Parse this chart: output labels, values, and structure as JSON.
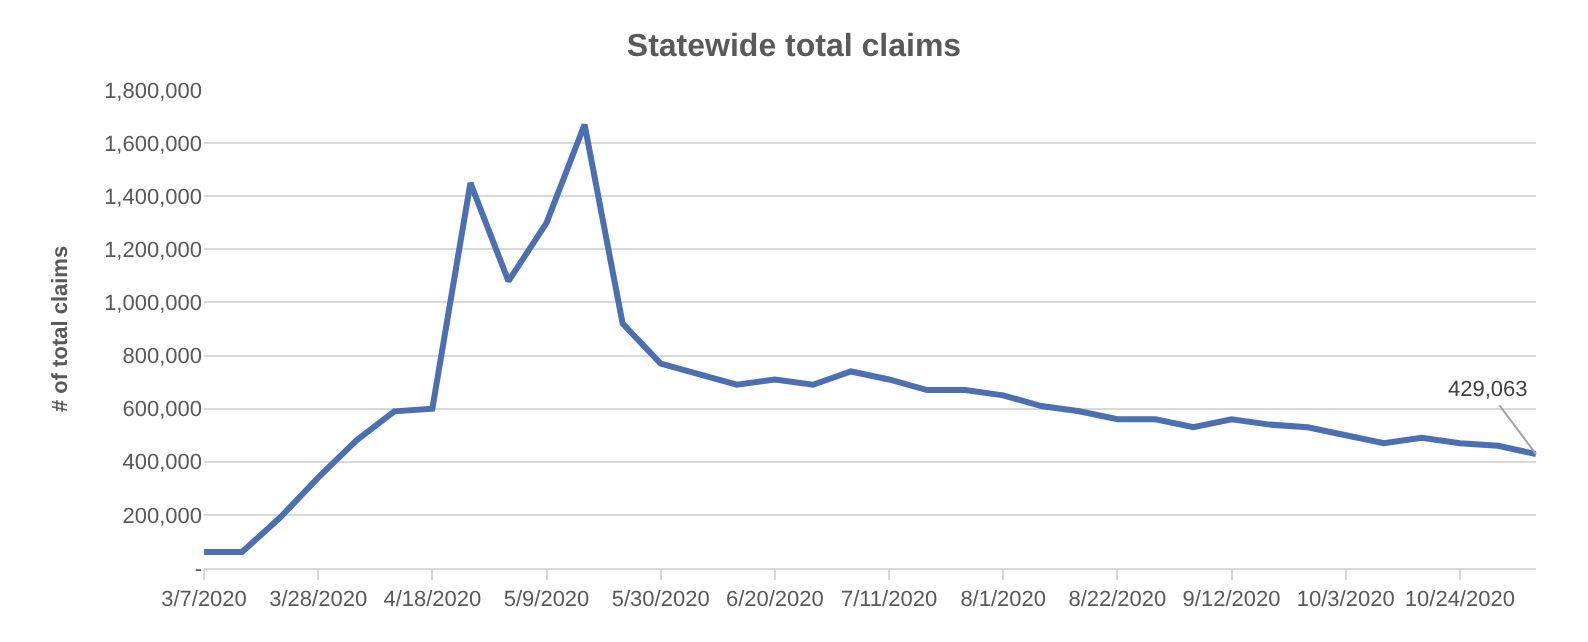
{
  "chart_data": {
    "type": "line",
    "title": "Statewide total claims",
    "ylabel": "# of total claims",
    "x": [
      "2020-03-07",
      "2020-03-14",
      "2020-03-21",
      "2020-03-28",
      "2020-04-04",
      "2020-04-11",
      "2020-04-18",
      "2020-04-25",
      "2020-05-02",
      "2020-05-09",
      "2020-05-16",
      "2020-05-23",
      "2020-05-30",
      "2020-06-06",
      "2020-06-13",
      "2020-06-20",
      "2020-06-27",
      "2020-07-04",
      "2020-07-11",
      "2020-07-18",
      "2020-07-25",
      "2020-08-01",
      "2020-08-08",
      "2020-08-15",
      "2020-08-22",
      "2020-08-29",
      "2020-09-05",
      "2020-09-12",
      "2020-09-19",
      "2020-09-26",
      "2020-10-03",
      "2020-10-10",
      "2020-10-17",
      "2020-10-24",
      "2020-10-31",
      "2020-11-07"
    ],
    "series": [
      {
        "color": "#4a6fb5",
        "values": [
          60000,
          60000,
          190000,
          340000,
          480000,
          590000,
          600000,
          1450000,
          1080000,
          1300000,
          1670000,
          920000,
          770000,
          730000,
          690000,
          710000,
          690000,
          740000,
          710000,
          670000,
          670000,
          650000,
          610000,
          590000,
          560000,
          560000,
          530000,
          560000,
          540000,
          530000,
          500000,
          470000,
          490000,
          470000,
          460000,
          429063
        ]
      }
    ],
    "annotations": [
      {
        "text": "429,063",
        "x": "2020-11-07",
        "y": 429063
      }
    ],
    "xlim": [
      "2020-03-07",
      "2020-11-07"
    ],
    "xticks": [
      {
        "value": "2020-03-07",
        "label": "3/7/2020"
      },
      {
        "value": "2020-03-28",
        "label": "3/28/2020"
      },
      {
        "value": "2020-04-18",
        "label": "4/18/2020"
      },
      {
        "value": "2020-05-09",
        "label": "5/9/2020"
      },
      {
        "value": "2020-05-30",
        "label": "5/30/2020"
      },
      {
        "value": "2020-06-20",
        "label": "6/20/2020"
      },
      {
        "value": "2020-07-11",
        "label": "7/11/2020"
      },
      {
        "value": "2020-08-01",
        "label": "8/1/2020"
      },
      {
        "value": "2020-08-22",
        "label": "8/22/2020"
      },
      {
        "value": "2020-09-12",
        "label": "9/12/2020"
      },
      {
        "value": "2020-10-03",
        "label": "10/3/2020"
      },
      {
        "value": "2020-10-24",
        "label": "10/24/2020"
      }
    ],
    "ylim": [
      0,
      1800000
    ],
    "yticks": [
      {
        "value": 0,
        "label": "-"
      },
      {
        "value": 200000,
        "label": "200,000"
      },
      {
        "value": 400000,
        "label": "400,000"
      },
      {
        "value": 600000,
        "label": "600,000"
      },
      {
        "value": 800000,
        "label": "800,000"
      },
      {
        "value": 1000000,
        "label": "1,000,000"
      },
      {
        "value": 1200000,
        "label": "1,200,000"
      },
      {
        "value": 1400000,
        "label": "1,400,000"
      },
      {
        "value": 1600000,
        "label": "1,600,000"
      },
      {
        "value": 1800000,
        "label": "1,800,000"
      }
    ],
    "grid": "y",
    "marker": "none",
    "line_style": "solid"
  }
}
